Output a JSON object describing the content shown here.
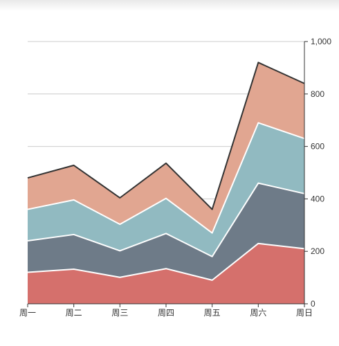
{
  "chart_data": {
    "type": "area",
    "stacked": true,
    "categories": [
      "周一",
      "周二",
      "周三",
      "周四",
      "周五",
      "周六",
      "周日"
    ],
    "series": [
      {
        "values": [
          120,
          132,
          101,
          134,
          90,
          230,
          210
        ],
        "color": "#d5706c"
      },
      {
        "values": [
          120,
          132,
          101,
          134,
          90,
          230,
          210
        ],
        "color": "#6e7b88"
      },
      {
        "values": [
          120,
          132,
          101,
          134,
          90,
          230,
          210
        ],
        "color": "#91bac1"
      },
      {
        "values": [
          120,
          132,
          101,
          134,
          90,
          230,
          210
        ],
        "color": "#e1a691"
      }
    ],
    "ylim": [
      0,
      1000
    ],
    "yticks": [
      0,
      200,
      400,
      600,
      800,
      1000
    ],
    "ytick_labels": [
      "0",
      "200",
      "400",
      "600",
      "800",
      "1,000"
    ],
    "y_axis_position": "right",
    "grid": true,
    "top_line_color": "#333333"
  }
}
